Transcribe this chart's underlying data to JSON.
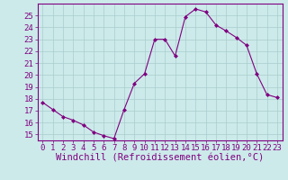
{
  "x": [
    0,
    1,
    2,
    3,
    4,
    5,
    6,
    7,
    8,
    9,
    10,
    11,
    12,
    13,
    14,
    15,
    16,
    17,
    18,
    19,
    20,
    21,
    22,
    23
  ],
  "y": [
    17.7,
    17.1,
    16.5,
    16.2,
    15.8,
    15.2,
    14.9,
    14.65,
    17.1,
    19.3,
    20.1,
    23.0,
    23.0,
    21.6,
    24.9,
    25.55,
    25.3,
    24.2,
    23.7,
    23.15,
    22.5,
    20.1,
    18.35,
    18.1
  ],
  "xlabel": "Windchill (Refroidissement éolien,°C)",
  "line_color": "#800080",
  "marker_color": "#800080",
  "bg_color": "#cceaea",
  "grid_color": "#aacccc",
  "ylim": [
    14.5,
    26.0
  ],
  "yticks": [
    15,
    16,
    17,
    18,
    19,
    20,
    21,
    22,
    23,
    24,
    25
  ],
  "xticks": [
    0,
    1,
    2,
    3,
    4,
    5,
    6,
    7,
    8,
    9,
    10,
    11,
    12,
    13,
    14,
    15,
    16,
    17,
    18,
    19,
    20,
    21,
    22,
    23
  ],
  "tick_label_color": "#800080",
  "tick_fontsize": 6.5,
  "xlabel_fontsize": 7.5,
  "border_color": "#800080",
  "xlim": [
    -0.5,
    23.5
  ]
}
